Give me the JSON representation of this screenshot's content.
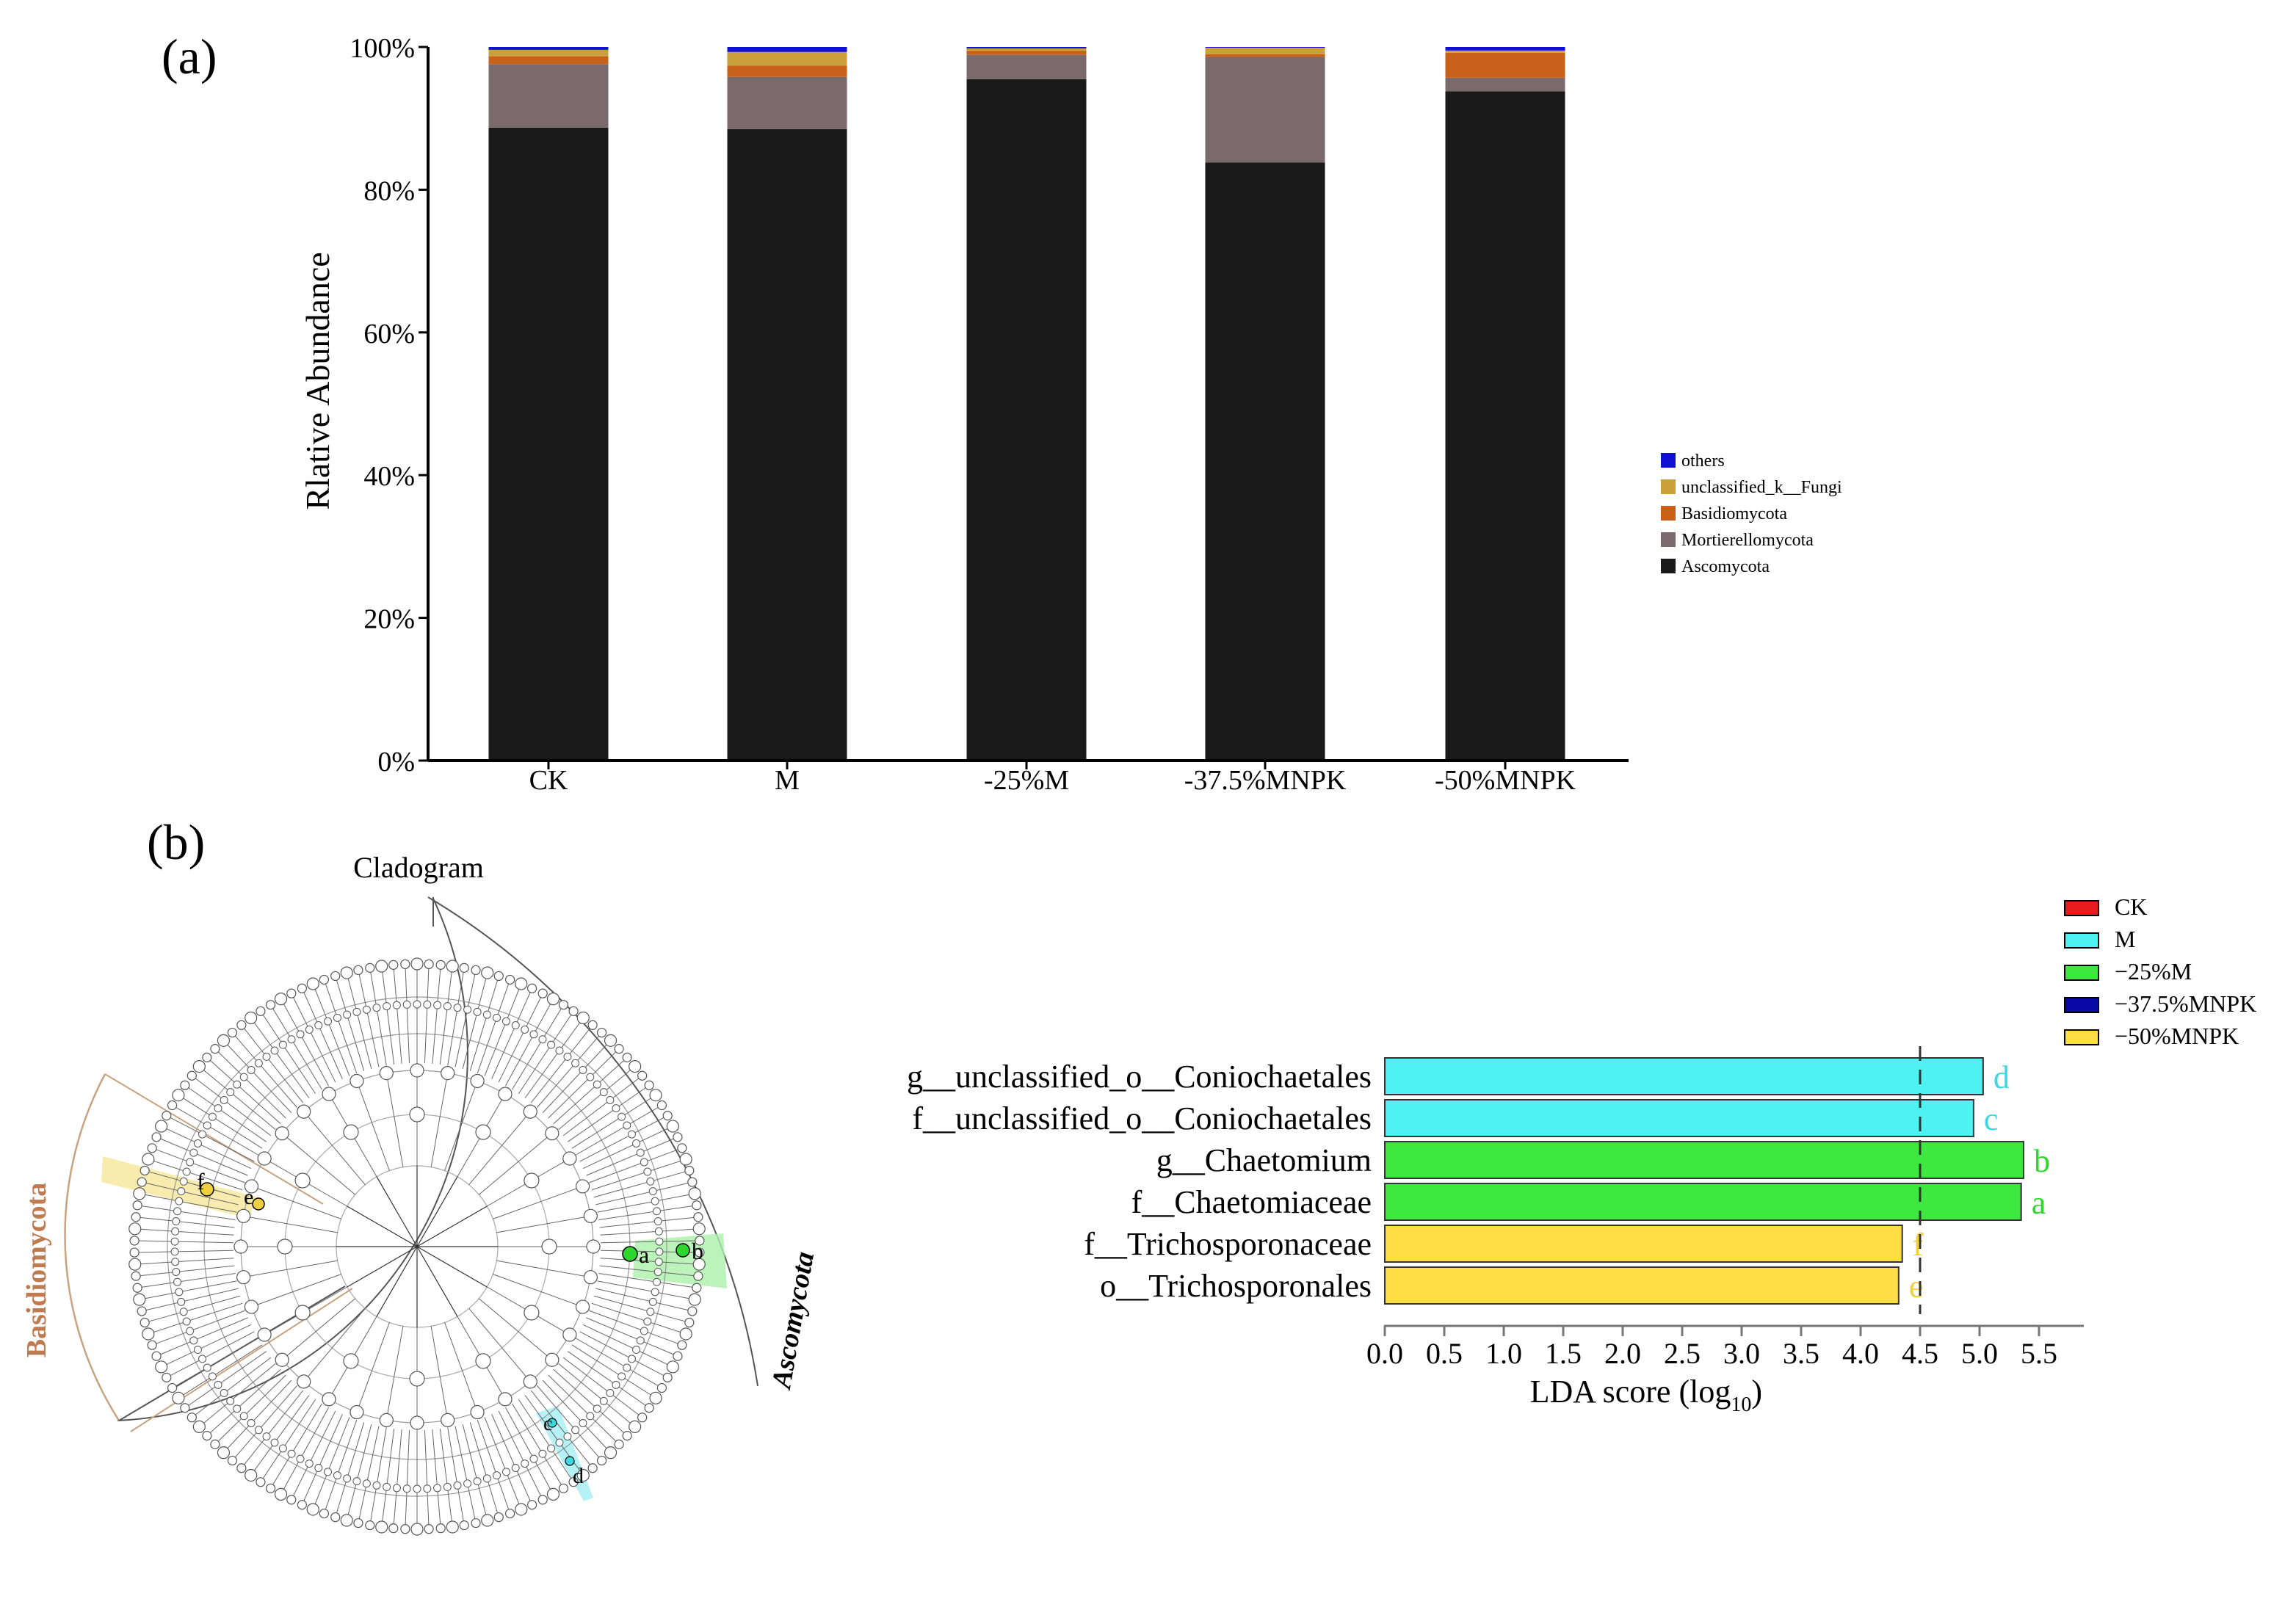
{
  "chart_data": [
    {
      "panel": "(a)",
      "type": "bar",
      "stacked": true,
      "title": "",
      "xlabel": "",
      "ylabel": "Rlative Abundance",
      "ylim": [
        0,
        100
      ],
      "y_ticks": [
        "0%",
        "20%",
        "40%",
        "60%",
        "80%",
        "100%"
      ],
      "categories": [
        "CK",
        "M",
        "-25%M",
        "-37.5%MNPK",
        "-50%MNPK"
      ],
      "series": [
        {
          "name": "Ascomycota",
          "color": "#1a1a1a",
          "values": [
            88.7,
            88.5,
            95.5,
            83.8,
            93.8
          ]
        },
        {
          "name": "Mortierellomycota",
          "color": "#7b6a6b",
          "values": [
            8.9,
            7.3,
            3.4,
            14.8,
            1.9
          ]
        },
        {
          "name": "Basidiomycota",
          "color": "#c8621a",
          "values": [
            1.1,
            1.6,
            0.6,
            0.4,
            3.5
          ]
        },
        {
          "name": "unclassified_k__Fungi",
          "color": "#c9a03c",
          "values": [
            0.9,
            1.9,
            0.3,
            0.9,
            0.3
          ]
        },
        {
          "name": "others",
          "color": "#1010d0",
          "values": [
            0.4,
            0.7,
            0.2,
            0.1,
            0.5
          ]
        }
      ],
      "legend_position": "right"
    },
    {
      "panel": "(b)",
      "type": "bar",
      "orientation": "horizontal",
      "title": "",
      "xlabel": "LDA score (log",
      "xlabel_sub": "10",
      "xlabel_end": ")",
      "xlim": [
        0,
        5.8
      ],
      "x_ticks": [
        "0.0",
        "0.5",
        "1.0",
        "1.5",
        "2.0",
        "2.5",
        "3.0",
        "3.5",
        "4.0",
        "4.5",
        "5.0",
        "5.5"
      ],
      "threshold": 4.5,
      "categories": [
        "g__unclassified_o__Coniochaetales",
        "f__unclassified_o__Coniochaetales",
        "g__Chaetomium",
        "f__Chaetomiaceae",
        "f__Trichosporonaceae",
        "o__Trichosporonales"
      ],
      "values": [
        5.03,
        4.95,
        5.37,
        5.35,
        4.35,
        4.32
      ],
      "letters": [
        "d",
        "c",
        "b",
        "a",
        "f",
        "e"
      ],
      "groups": [
        "M",
        "M",
        "-25%M",
        "-25%M",
        "-50%MNPK",
        "-50%MNPK"
      ],
      "legend": [
        {
          "name": "CK",
          "color": "#e81c1c"
        },
        {
          "name": "M",
          "color": "#4ef2f2"
        },
        {
          "name": "−25%M",
          "color": "#3fe83f"
        },
        {
          "name": "−37.5%MNPK",
          "color": "#0a0aa8"
        },
        {
          "name": "−50%MNPK",
          "color": "#ffdd44"
        }
      ],
      "legend_position": "top-right"
    }
  ],
  "labels": {
    "panel_a": "(a)",
    "panel_b": "(b)",
    "cladogram_title": "Cladogram",
    "clade_basidio": "Basidiomycota",
    "clade_asco": "Ascomycota",
    "node_letters": [
      "a",
      "b",
      "c",
      "d",
      "e",
      "f"
    ]
  },
  "colors": {
    "basidio_label": "#c07a4f",
    "asco_label": "#000000",
    "green_group": "#2ed62e",
    "cyan_group": "#3cd8e0",
    "yellow_group": "#f0d040"
  }
}
